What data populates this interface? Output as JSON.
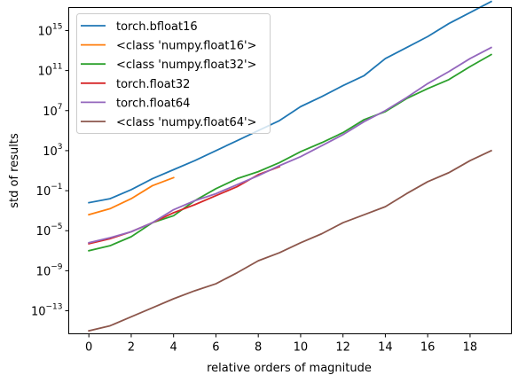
{
  "chart_data": {
    "type": "line",
    "title": "",
    "xlabel": "relative orders of magnitude",
    "ylabel": "std of results",
    "xlim": [
      -0.95,
      19.95
    ],
    "ylim_log10": [
      -15.3,
      17.3
    ],
    "y_scale": "log",
    "grid": false,
    "legend_position": "top-left",
    "x_ticks": [
      0,
      2,
      4,
      6,
      8,
      10,
      12,
      14,
      16,
      18
    ],
    "x_tick_labels": [
      "0",
      "2",
      "4",
      "6",
      "8",
      "10",
      "12",
      "14",
      "16",
      "18"
    ],
    "y_ticks_log10": [
      -13,
      -9,
      -5,
      -1,
      3,
      7,
      11,
      15
    ],
    "y_tick_labels": [
      {
        "base": "10",
        "exp": "−13"
      },
      {
        "base": "10",
        "exp": "−9"
      },
      {
        "base": "10",
        "exp": "−5"
      },
      {
        "base": "10",
        "exp": "−1"
      },
      {
        "base": "10",
        "exp": "3"
      },
      {
        "base": "10",
        "exp": "7"
      },
      {
        "base": "10",
        "exp": "11"
      },
      {
        "base": "10",
        "exp": "15"
      }
    ],
    "series": [
      {
        "name": "torch.bfloat16",
        "color": "#1f77b4",
        "x": [
          0,
          1,
          2,
          3,
          4,
          5,
          6,
          7,
          8,
          9,
          10,
          11,
          12,
          13,
          14,
          15,
          16,
          17,
          18,
          19
        ],
        "y_log10": [
          -2.2,
          -1.8,
          -0.9,
          0.2,
          1.1,
          2.0,
          3.0,
          4.0,
          5.0,
          6.0,
          7.4,
          8.4,
          9.5,
          10.5,
          12.2,
          13.3,
          14.4,
          15.7,
          16.8,
          17.9
        ]
      },
      {
        "name": "<class 'numpy.float16'>",
        "color": "#ff7f0e",
        "x": [
          0,
          1,
          2,
          3,
          4
        ],
        "y_log10": [
          -3.4,
          -2.8,
          -1.8,
          -0.5,
          0.3
        ]
      },
      {
        "name": "<class 'numpy.float32'>",
        "color": "#2ca02c",
        "x": [
          0,
          1,
          2,
          3,
          4,
          5,
          6,
          7,
          8,
          9,
          10,
          11,
          12,
          13,
          14,
          15,
          16,
          17,
          18,
          19
        ],
        "y_log10": [
          -7.0,
          -6.5,
          -5.6,
          -4.2,
          -3.5,
          -2.0,
          -0.8,
          0.2,
          0.9,
          1.8,
          2.9,
          3.8,
          4.8,
          6.1,
          6.9,
          8.2,
          9.2,
          10.1,
          11.4,
          12.6
        ]
      },
      {
        "name": "torch.float32",
        "color": "#d62728",
        "x": [
          0,
          1,
          2,
          3,
          4,
          5,
          6,
          7,
          8,
          9
        ],
        "y_log10": [
          -6.3,
          -5.8,
          -5.1,
          -4.2,
          -3.2,
          -2.4,
          -1.5,
          -0.6,
          0.6,
          1.4
        ]
      },
      {
        "name": "torch.float64",
        "color": "#9467bd",
        "x": [
          0,
          1,
          2,
          3,
          4,
          5,
          6,
          7,
          8,
          9,
          10,
          11,
          12,
          13,
          14,
          15,
          16,
          17,
          18,
          19
        ],
        "y_log10": [
          -6.2,
          -5.7,
          -5.1,
          -4.2,
          -2.9,
          -2.0,
          -1.3,
          -0.4,
          0.5,
          1.5,
          2.4,
          3.5,
          4.6,
          5.9,
          7.0,
          8.3,
          9.7,
          10.9,
          12.2,
          13.3
        ]
      },
      {
        "name": "<class 'numpy.float64'>",
        "color": "#8c564b",
        "x": [
          0,
          1,
          2,
          3,
          4,
          5,
          6,
          7,
          8,
          9,
          10,
          11,
          12,
          13,
          14,
          15,
          16,
          17,
          18,
          19
        ],
        "y_log10": [
          -15.0,
          -14.5,
          -13.6,
          -12.7,
          -11.8,
          -11.0,
          -10.3,
          -9.2,
          -8.0,
          -7.2,
          -6.2,
          -5.3,
          -4.2,
          -3.4,
          -2.6,
          -1.3,
          -0.1,
          0.8,
          2.0,
          3.0
        ]
      }
    ]
  }
}
